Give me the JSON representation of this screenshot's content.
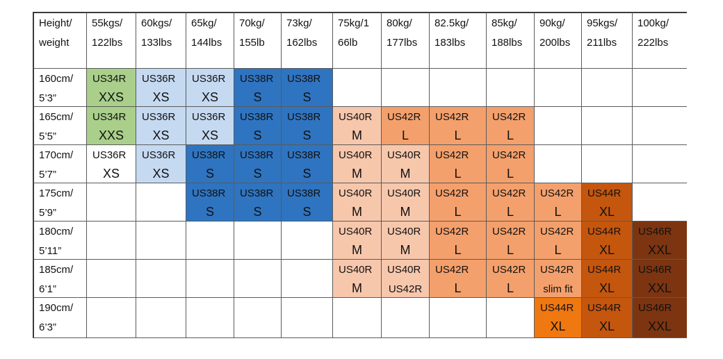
{
  "colors": {
    "XXS": "#a9cf8a",
    "XS": "#c5d9f1",
    "S": "#2f74c0",
    "M": "#f7c7ac",
    "L": "#f4a06c",
    "L_dark": "#e96c10",
    "XL": "#c5560e",
    "XXL": "#7c3510",
    "XL_190": "#f07810"
  },
  "table": {
    "corner": [
      "Height/",
      "weight"
    ],
    "weights": [
      [
        "55kgs/",
        "122lbs"
      ],
      [
        "60kgs/",
        "133lbs"
      ],
      [
        "65kg/",
        "144lbs"
      ],
      [
        "70kg/",
        "155lb"
      ],
      [
        "73kg/",
        "162lbs"
      ],
      [
        "75kg/1",
        "66lb"
      ],
      [
        "80kg/",
        "177lbs"
      ],
      [
        "82.5kg/",
        "183lbs"
      ],
      [
        "85kg/",
        "188lbs"
      ],
      [
        "90kg/",
        "200lbs"
      ],
      [
        "95kgs/",
        "211lbs"
      ],
      [
        "100kg/",
        "222lbs"
      ]
    ],
    "rows": [
      {
        "height": [
          "160cm/",
          "5’3”"
        ],
        "cells": [
          {
            "code": "US34R",
            "size": "XXS",
            "color": "XXS"
          },
          {
            "code": "US36R",
            "size": "XS",
            "color": "XS"
          },
          {
            "code": "US36R",
            "size": "XS",
            "color": "XS"
          },
          {
            "code": "US38R",
            "size": "S",
            "color": "S"
          },
          {
            "code": "US38R",
            "size": "S",
            "color": "S"
          },
          null,
          null,
          null,
          null,
          null,
          null,
          null
        ]
      },
      {
        "height": [
          "165cm/",
          "5’5”"
        ],
        "cells": [
          {
            "code": "US34R",
            "size": "XXS",
            "color": "XXS"
          },
          {
            "code": "US36R",
            "size": "XS",
            "color": "XS"
          },
          {
            "code": "US36R",
            "size": "XS",
            "color": "XS"
          },
          {
            "code": "US38R",
            "size": "S",
            "color": "S"
          },
          {
            "code": "US38R",
            "size": "S",
            "color": "S"
          },
          {
            "code": "US40R",
            "size": "M",
            "color": "M"
          },
          {
            "code": "US42R",
            "size": "L",
            "color": "L"
          },
          {
            "code": "US42R",
            "size": "L",
            "color": "L"
          },
          {
            "code": "US42R",
            "size": "L",
            "color": "L"
          },
          null,
          null,
          null
        ]
      },
      {
        "height": [
          "170cm/",
          "5’7”"
        ],
        "cells": [
          {
            "code": "US36R",
            "size": "XS",
            "color": null
          },
          {
            "code": "US36R",
            "size": "XS",
            "color": "XS"
          },
          {
            "code": "US38R",
            "size": "S",
            "color": "S"
          },
          {
            "code": "US38R",
            "size": "S",
            "color": "S"
          },
          {
            "code": "US38R",
            "size": "S",
            "color": "S"
          },
          {
            "code": "US40R",
            "size": "M",
            "color": "M"
          },
          {
            "code": "US40R",
            "size": "M",
            "color": "M"
          },
          {
            "code": "US42R",
            "size": "L",
            "color": "L"
          },
          {
            "code": "US42R",
            "size": "L",
            "color": "L"
          },
          null,
          null,
          null
        ]
      },
      {
        "height": [
          "175cm/",
          "5’9”"
        ],
        "cells": [
          null,
          null,
          {
            "code": "US38R",
            "size": "S",
            "color": "S"
          },
          {
            "code": "US38R",
            "size": "S",
            "color": "S"
          },
          {
            "code": "US38R",
            "size": "S",
            "color": "S"
          },
          {
            "code": "US40R",
            "size": "M",
            "color": "M"
          },
          {
            "code": "US40R",
            "size": "M",
            "color": "M"
          },
          {
            "code": "US42R",
            "size": "L",
            "color": "L"
          },
          {
            "code": "US42R",
            "size": "L",
            "color": "L"
          },
          {
            "code": "US42R",
            "size": "L",
            "color": "L"
          },
          {
            "code": "US44R",
            "size": "XL",
            "color": "XL"
          },
          null
        ]
      },
      {
        "height": [
          "180cm/",
          "5’11”"
        ],
        "cells": [
          null,
          null,
          null,
          null,
          null,
          {
            "code": "US40R",
            "size": "M",
            "color": "M"
          },
          {
            "code": "US40R",
            "size": "M",
            "color": "M"
          },
          {
            "code": "US42R",
            "size": "L",
            "color": "L"
          },
          {
            "code": "US42R",
            "size": "L",
            "color": "L"
          },
          {
            "code": "US42R",
            "size": "L",
            "color": "L"
          },
          {
            "code": "US44R",
            "size": "XL",
            "color": "XL"
          },
          {
            "code": "US46R",
            "size": "XXL",
            "color": "XXL"
          }
        ]
      },
      {
        "height": [
          "185cm/",
          "6’1”"
        ],
        "cells": [
          null,
          null,
          null,
          null,
          null,
          {
            "code": "US40R",
            "size": "M",
            "color": "M"
          },
          {
            "code": "US40R",
            "size": "US42R",
            "color": "M",
            "small": true
          },
          {
            "code": "US42R",
            "size": "L",
            "color": "L"
          },
          {
            "code": "US42R",
            "size": "L",
            "color": "L"
          },
          {
            "code": "US42R",
            "size": "slim fit",
            "color": "L",
            "small": true
          },
          {
            "code": "US44R",
            "size": "XL",
            "color": "XL"
          },
          {
            "code": "US46R",
            "size": "XXL",
            "color": "XXL"
          }
        ]
      },
      {
        "height": [
          "190cm/",
          "6’3”"
        ],
        "cells": [
          null,
          null,
          null,
          null,
          null,
          null,
          null,
          null,
          null,
          {
            "code": "US44R",
            "size": "XL",
            "color": "XL_190"
          },
          {
            "code": "US44R",
            "size": "XL",
            "color": "XL"
          },
          {
            "code": "US46R",
            "size": "XXL",
            "color": "XXL"
          }
        ]
      }
    ]
  }
}
